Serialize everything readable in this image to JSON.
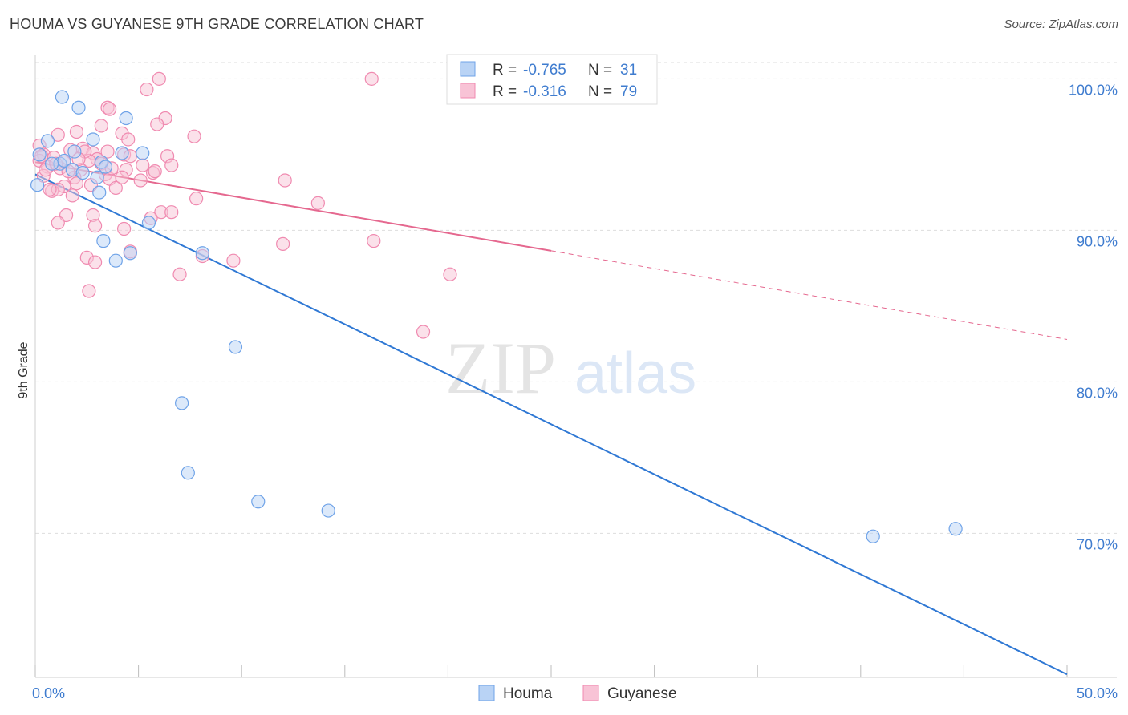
{
  "title": "HOUMA VS GUYANESE 9TH GRADE CORRELATION CHART",
  "source": "Source: ZipAtlas.com",
  "colors": {
    "houma": "#6fa3e8",
    "houma_fill": "#b9d3f5",
    "houma_line": "#2f78d4",
    "guyanese": "#f08ab0",
    "guyanese_fill": "#f8c3d6",
    "guyanese_line": "#e5688f",
    "axis_text": "#3f7ccf",
    "grid": "#dddddd"
  },
  "watermark": {
    "zip": "ZIP",
    "atlas": "atlas"
  },
  "legend_top": {
    "rows": [
      {
        "r_label": "R = ",
        "r_value": "-0.765",
        "n_label": "N = ",
        "n_value": "31",
        "series": "houma"
      },
      {
        "r_label": "R = ",
        "r_value": "-0.316",
        "n_label": "N = ",
        "n_value": "79",
        "series": "guyanese"
      }
    ]
  },
  "chart_data": {
    "type": "scatter",
    "title": "HOUMA VS GUYANESE 9TH GRADE CORRELATION CHART",
    "xlabel": "",
    "ylabel": "9th Grade",
    "xlim": [
      0,
      50
    ],
    "ylim": [
      60.5,
      101.5
    ],
    "x_tick_labels": [
      {
        "value": 0,
        "label": "0.0%"
      },
      {
        "value": 50,
        "label": "50.0%"
      }
    ],
    "x_minor_ticks": [
      0,
      5,
      10,
      15,
      20,
      25,
      30,
      35,
      40,
      45,
      50
    ],
    "y_ticks": [
      {
        "value": 100,
        "label": "100.0%"
      },
      {
        "value": 90,
        "label": "90.0%"
      },
      {
        "value": 80,
        "label": "80.0%"
      },
      {
        "value": 70,
        "label": "70.0%"
      }
    ],
    "legend": [
      "Houma",
      "Guyanese"
    ],
    "series": [
      {
        "name": "Houma",
        "color": "houma",
        "trend": {
          "x0": 0,
          "y0": 93.7,
          "x1": 50,
          "y1": 60.7,
          "dashed_from": null
        },
        "points": [
          [
            1.3,
            98.8
          ],
          [
            2.1,
            98.1
          ],
          [
            4.4,
            97.4
          ],
          [
            2.8,
            96.0
          ],
          [
            0.6,
            95.9
          ],
          [
            0.2,
            95.0
          ],
          [
            1.9,
            95.2
          ],
          [
            4.2,
            95.1
          ],
          [
            5.2,
            95.1
          ],
          [
            1.2,
            94.4
          ],
          [
            1.4,
            94.6
          ],
          [
            3.2,
            94.5
          ],
          [
            1.8,
            94.0
          ],
          [
            0.8,
            94.4
          ],
          [
            3.4,
            94.2
          ],
          [
            2.3,
            93.8
          ],
          [
            3.0,
            93.5
          ],
          [
            0.1,
            93.0
          ],
          [
            3.1,
            92.5
          ],
          [
            5.5,
            90.5
          ],
          [
            3.3,
            89.3
          ],
          [
            3.9,
            88.0
          ],
          [
            4.6,
            88.5
          ],
          [
            8.1,
            88.5
          ],
          [
            9.7,
            82.3
          ],
          [
            7.1,
            78.6
          ],
          [
            7.4,
            74.0
          ],
          [
            10.8,
            72.1
          ],
          [
            14.2,
            71.5
          ],
          [
            40.6,
            69.8
          ],
          [
            44.6,
            70.3
          ]
        ]
      },
      {
        "name": "Guyanese",
        "color": "guyanese",
        "trend": {
          "x0": 0,
          "y0": 94.5,
          "x1": 50,
          "y1": 82.8,
          "dashed_from": 25
        },
        "points": [
          [
            6.0,
            100.0
          ],
          [
            16.3,
            100.0
          ],
          [
            5.4,
            99.3
          ],
          [
            3.5,
            98.1
          ],
          [
            3.6,
            98.0
          ],
          [
            6.3,
            97.4
          ],
          [
            5.9,
            97.0
          ],
          [
            3.2,
            96.9
          ],
          [
            2.0,
            96.5
          ],
          [
            4.2,
            96.4
          ],
          [
            1.1,
            96.3
          ],
          [
            7.7,
            96.2
          ],
          [
            4.5,
            96.0
          ],
          [
            0.2,
            95.6
          ],
          [
            2.3,
            95.4
          ],
          [
            1.7,
            95.3
          ],
          [
            2.8,
            95.1
          ],
          [
            4.3,
            95.0
          ],
          [
            0.4,
            95.0
          ],
          [
            6.4,
            94.9
          ],
          [
            0.9,
            94.8
          ],
          [
            3.0,
            94.7
          ],
          [
            0.2,
            94.6
          ],
          [
            1.4,
            94.5
          ],
          [
            2.6,
            94.6
          ],
          [
            3.2,
            94.4
          ],
          [
            5.2,
            94.3
          ],
          [
            6.6,
            94.3
          ],
          [
            0.6,
            94.2
          ],
          [
            1.2,
            94.1
          ],
          [
            2.2,
            94.0
          ],
          [
            4.4,
            94.0
          ],
          [
            5.7,
            93.8
          ],
          [
            3.4,
            93.7
          ],
          [
            0.4,
            93.6
          ],
          [
            1.9,
            93.5
          ],
          [
            3.6,
            93.4
          ],
          [
            5.1,
            93.3
          ],
          [
            2.0,
            93.1
          ],
          [
            12.1,
            93.3
          ],
          [
            1.4,
            92.9
          ],
          [
            0.8,
            92.6
          ],
          [
            1.1,
            92.7
          ],
          [
            1.8,
            92.3
          ],
          [
            3.9,
            92.8
          ],
          [
            7.8,
            92.1
          ],
          [
            13.7,
            91.8
          ],
          [
            6.1,
            91.2
          ],
          [
            6.6,
            91.2
          ],
          [
            1.5,
            91.0
          ],
          [
            2.8,
            91.0
          ],
          [
            5.6,
            90.8
          ],
          [
            1.1,
            90.5
          ],
          [
            2.9,
            90.3
          ],
          [
            4.3,
            90.1
          ],
          [
            12.0,
            89.1
          ],
          [
            16.4,
            89.3
          ],
          [
            4.6,
            88.6
          ],
          [
            2.5,
            88.2
          ],
          [
            8.1,
            88.3
          ],
          [
            9.6,
            88.0
          ],
          [
            2.9,
            87.9
          ],
          [
            7.0,
            87.1
          ],
          [
            20.1,
            87.1
          ],
          [
            2.6,
            86.0
          ],
          [
            18.8,
            83.3
          ],
          [
            0.3,
            94.9
          ],
          [
            2.4,
            95.2
          ],
          [
            3.7,
            94.1
          ],
          [
            4.6,
            94.9
          ],
          [
            1.6,
            93.9
          ],
          [
            0.7,
            92.7
          ],
          [
            5.8,
            93.9
          ],
          [
            1.0,
            94.4
          ],
          [
            2.1,
            94.7
          ],
          [
            4.2,
            93.5
          ],
          [
            0.5,
            94.0
          ],
          [
            2.7,
            93.0
          ],
          [
            3.5,
            95.2
          ]
        ]
      }
    ]
  }
}
